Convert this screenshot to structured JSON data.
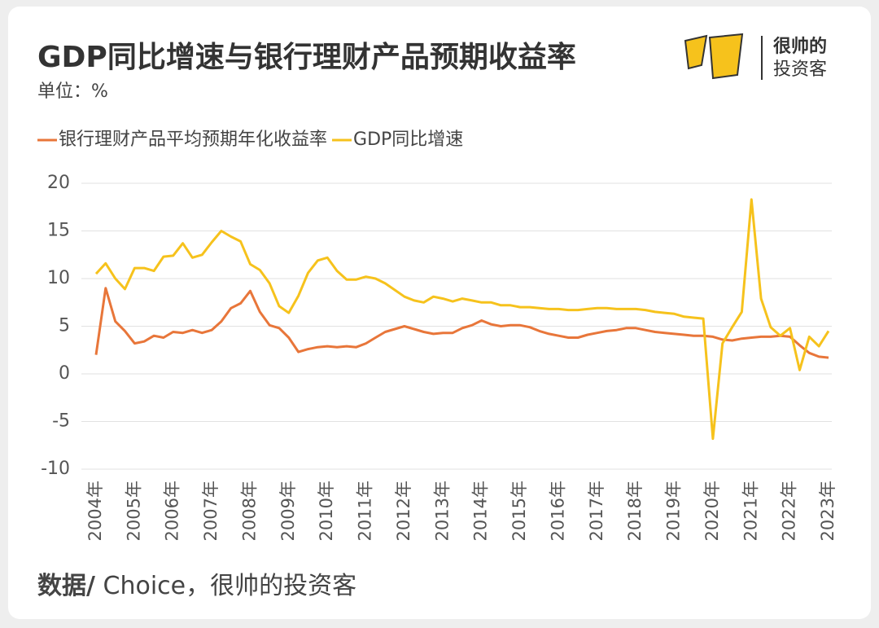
{
  "chart_data": {
    "type": "line",
    "title": "GDP同比增速与银行理财产品预期收益率",
    "unit": "单位：%",
    "brand": [
      "很帅的",
      "投资客"
    ],
    "source_label": "数据/",
    "source": " Choice，很帅的投资客",
    "categories": [
      "2004年",
      null,
      null,
      null,
      "2005年",
      null,
      null,
      null,
      "2006年",
      null,
      null,
      null,
      "2007年",
      null,
      null,
      null,
      "2008年",
      null,
      null,
      null,
      "2009年",
      null,
      null,
      null,
      "2010年",
      null,
      null,
      null,
      "2011年",
      null,
      null,
      null,
      "2012年",
      null,
      null,
      null,
      "2013年",
      null,
      null,
      null,
      "2014年",
      null,
      null,
      null,
      "2015年",
      null,
      null,
      null,
      "2016年",
      null,
      null,
      null,
      "2017年",
      null,
      null,
      null,
      "2018年",
      null,
      null,
      null,
      "2019年",
      null,
      null,
      null,
      "2020年",
      null,
      null,
      null,
      "2021年",
      null,
      null,
      null,
      "2022年",
      null,
      null,
      null,
      "2023年"
    ],
    "series": [
      {
        "name": "银行理财产品平均预期年化收益率",
        "color": "#e8763a",
        "values": [
          2.0,
          9.0,
          5.5,
          4.5,
          3.2,
          3.4,
          4.0,
          3.8,
          4.4,
          4.3,
          4.6,
          4.3,
          4.6,
          5.5,
          6.9,
          7.4,
          8.7,
          6.5,
          5.1,
          4.8,
          3.8,
          2.3,
          2.6,
          2.8,
          2.9,
          2.8,
          2.9,
          2.8,
          3.2,
          3.8,
          4.4,
          4.7,
          5.0,
          4.7,
          4.4,
          4.2,
          4.3,
          4.3,
          4.8,
          5.1,
          5.6,
          5.2,
          5.0,
          5.1,
          5.1,
          4.9,
          4.5,
          4.2,
          4.0,
          3.8,
          3.8,
          4.1,
          4.3,
          4.5,
          4.6,
          4.8,
          4.8,
          4.6,
          4.4,
          4.3,
          4.2,
          4.1,
          4.0,
          4.0,
          3.9,
          3.6,
          3.5,
          3.7,
          3.8,
          3.9,
          3.9,
          4.0,
          3.9,
          3.0,
          2.2,
          1.8,
          1.7
        ]
      },
      {
        "name": "GDP同比增速",
        "color": "#f6c21c",
        "values": [
          10.5,
          11.6,
          10.0,
          8.9,
          11.1,
          11.1,
          10.8,
          12.3,
          12.4,
          13.7,
          12.2,
          12.5,
          13.8,
          15.0,
          14.4,
          13.9,
          11.5,
          10.9,
          9.5,
          7.1,
          6.4,
          8.2,
          10.6,
          11.9,
          12.2,
          10.8,
          9.9,
          9.9,
          10.2,
          10.0,
          9.5,
          8.8,
          8.1,
          7.7,
          7.5,
          8.1,
          7.9,
          7.6,
          7.9,
          7.7,
          7.5,
          7.5,
          7.2,
          7.2,
          7.0,
          7.0,
          6.9,
          6.8,
          6.8,
          6.7,
          6.7,
          6.8,
          6.9,
          6.9,
          6.8,
          6.8,
          6.8,
          6.7,
          6.5,
          6.4,
          6.3,
          6.0,
          5.9,
          5.8,
          -6.8,
          3.2,
          4.9,
          6.5,
          18.3,
          7.9,
          4.9,
          4.0,
          4.8,
          0.4,
          3.9,
          2.9,
          4.5
        ]
      }
    ],
    "ylim": [
      -10,
      20
    ],
    "yticks": [
      20,
      15,
      10,
      5,
      0,
      -5,
      -10
    ],
    "grid": true
  }
}
